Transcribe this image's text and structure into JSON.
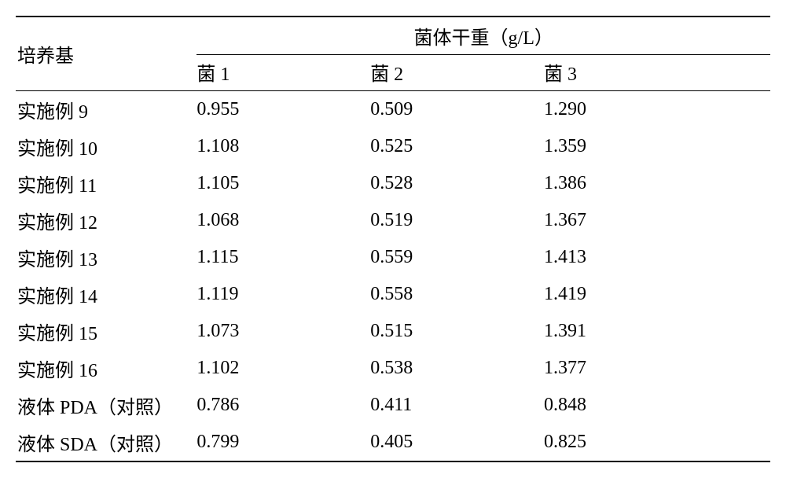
{
  "table": {
    "type": "table",
    "background_color": "#ffffff",
    "text_color": "#000000",
    "border_color": "#000000",
    "font_size_pt": 18,
    "font_family": "SimSun",
    "row_label_header": "培养基",
    "group_header": "菌体干重（g/L）",
    "sub_headers": [
      "菌 1",
      "菌 2",
      "菌 3"
    ],
    "column_widths_pct": [
      24,
      23,
      23,
      30
    ],
    "rows": [
      {
        "label": "实施例 9",
        "v1": "0.955",
        "v2": "0.509",
        "v3": "1.290"
      },
      {
        "label": "实施例 10",
        "v1": "1.108",
        "v2": "0.525",
        "v3": "1.359"
      },
      {
        "label": "实施例 11",
        "v1": "1.105",
        "v2": "0.528",
        "v3": "1.386"
      },
      {
        "label": "实施例 12",
        "v1": "1.068",
        "v2": "0.519",
        "v3": "1.367"
      },
      {
        "label": "实施例 13",
        "v1": "1.115",
        "v2": "0.559",
        "v3": "1.413"
      },
      {
        "label": "实施例 14",
        "v1": "1.119",
        "v2": "0.558",
        "v3": "1.419"
      },
      {
        "label": "实施例 15",
        "v1": "1.073",
        "v2": "0.515",
        "v3": "1.391"
      },
      {
        "label": "实施例 16",
        "v1": "1.102",
        "v2": "0.538",
        "v3": "1.377"
      },
      {
        "label": "液体 PDA（对照）",
        "v1": "0.786",
        "v2": "0.411",
        "v3": "0.848"
      },
      {
        "label": "液体 SDA（对照）",
        "v1": "0.799",
        "v2": "0.405",
        "v3": "0.825"
      }
    ]
  }
}
